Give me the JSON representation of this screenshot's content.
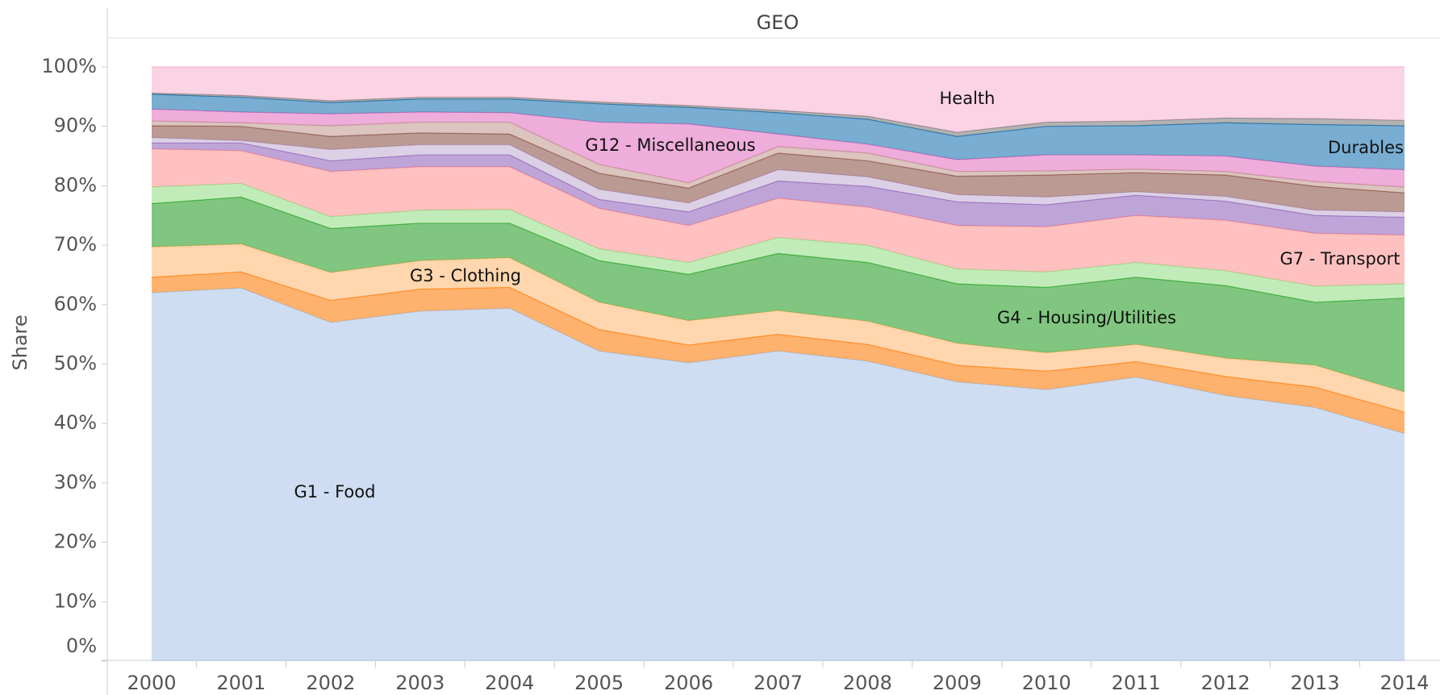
{
  "chart_data": {
    "type": "stacked_area",
    "title": "GEO",
    "ylabel": "Share",
    "categories": [
      "2000",
      "2001",
      "2002",
      "2003",
      "2004",
      "2005",
      "2006",
      "2007",
      "2008",
      "2009",
      "2010",
      "2011",
      "2012",
      "2013",
      "2014"
    ],
    "ylim": [
      0,
      100
    ],
    "yticks": [
      {
        "value": 0,
        "label": "0%"
      },
      {
        "value": 10,
        "label": "10%"
      },
      {
        "value": 20,
        "label": "20%"
      },
      {
        "value": 30,
        "label": "30%"
      },
      {
        "value": 40,
        "label": "40%"
      },
      {
        "value": 50,
        "label": "50%"
      },
      {
        "value": 60,
        "label": "60%"
      },
      {
        "value": 70,
        "label": "70%"
      },
      {
        "value": 80,
        "label": "80%"
      },
      {
        "value": 90,
        "label": "90%"
      },
      {
        "value": 100,
        "label": "100%"
      }
    ],
    "series": [
      {
        "name": "G1 - Food",
        "color": "#aec7e8",
        "values": [
          62.0,
          62.8,
          57.0,
          58.9,
          59.4,
          52.2,
          50.2,
          52.2,
          50.5,
          47.0,
          45.7,
          47.8,
          44.7,
          42.7,
          38.3
        ]
      },
      {
        "color": "#ff7f0e",
        "values": [
          2.6,
          2.7,
          3.7,
          3.7,
          3.5,
          3.6,
          3.0,
          2.8,
          2.8,
          2.8,
          3.1,
          2.6,
          3.2,
          3.4,
          3.6
        ]
      },
      {
        "name": "G3 - Clothing",
        "color": "#ffbb78",
        "values": [
          5.1,
          4.7,
          4.7,
          4.8,
          5.0,
          4.6,
          4.1,
          4.0,
          3.9,
          3.7,
          3.1,
          2.9,
          3.1,
          3.7,
          3.4
        ]
      },
      {
        "name": "G4 - Housing/Utilities",
        "color": "#2ca02c",
        "values": [
          7.3,
          7.9,
          7.4,
          6.3,
          5.8,
          7.0,
          7.8,
          9.6,
          9.9,
          10.0,
          11.0,
          11.3,
          12.2,
          10.6,
          15.8
        ]
      },
      {
        "color": "#98df8a",
        "values": [
          2.8,
          2.3,
          2.0,
          2.2,
          2.3,
          2.0,
          2.0,
          2.7,
          2.9,
          2.5,
          2.6,
          2.5,
          2.5,
          2.7,
          2.4
        ]
      },
      {
        "name": "G7 - Transport",
        "color": "#ff9896",
        "values": [
          6.4,
          5.5,
          7.6,
          7.3,
          7.2,
          6.8,
          6.2,
          6.6,
          6.4,
          7.3,
          7.6,
          7.9,
          8.5,
          8.9,
          8.2
        ]
      },
      {
        "color": "#9467bd",
        "values": [
          1.0,
          1.3,
          1.8,
          2.0,
          2.0,
          1.5,
          2.3,
          2.9,
          3.5,
          4.0,
          3.7,
          3.4,
          3.2,
          3.0,
          3.0
        ]
      },
      {
        "color": "#c5b0d5",
        "values": [
          0.9,
          0.4,
          1.9,
          1.7,
          1.7,
          1.7,
          1.5,
          1.9,
          1.6,
          1.2,
          1.3,
          0.6,
          0.8,
          0.9,
          0.9
        ]
      },
      {
        "color": "#8c564b",
        "values": [
          2.0,
          2.4,
          2.2,
          2.0,
          1.8,
          2.7,
          2.5,
          2.8,
          2.7,
          3.1,
          3.7,
          3.2,
          3.6,
          4.0,
          3.2
        ]
      },
      {
        "color": "#c49c94",
        "values": [
          0.8,
          0.6,
          1.8,
          1.8,
          2.0,
          1.5,
          0.9,
          1.1,
          1.3,
          0.8,
          0.7,
          0.6,
          0.6,
          0.8,
          1.0
        ]
      },
      {
        "name": "G12 - Miscellaneous",
        "color": "#e377c2",
        "values": [
          2.0,
          1.8,
          2.0,
          1.7,
          1.6,
          7.1,
          9.9,
          2.1,
          1.5,
          2.0,
          2.7,
          2.4,
          2.6,
          2.6,
          2.9
        ]
      },
      {
        "name": "Durables",
        "color": "#1f77b4",
        "values": [
          2.5,
          2.5,
          1.9,
          2.2,
          2.3,
          3.1,
          2.8,
          3.6,
          4.2,
          3.9,
          4.8,
          4.9,
          5.6,
          7.0,
          7.4
        ]
      },
      {
        "color": "#7f7f7f",
        "values": [
          0.2,
          0.3,
          0.3,
          0.3,
          0.3,
          0.3,
          0.3,
          0.4,
          0.5,
          0.7,
          0.7,
          0.8,
          0.8,
          1.0,
          0.9
        ]
      },
      {
        "name": "Health",
        "color": "#f7b6d2",
        "values": [
          4.4,
          4.8,
          5.7,
          5.1,
          5.1,
          5.9,
          6.5,
          7.3,
          8.3,
          11.0,
          9.3,
          9.1,
          8.6,
          8.7,
          9.0
        ]
      }
    ]
  }
}
